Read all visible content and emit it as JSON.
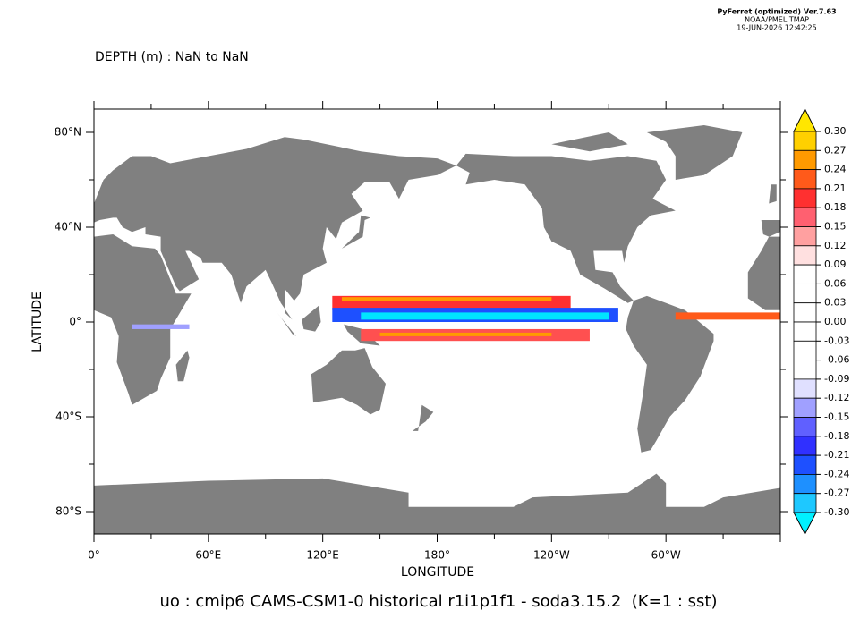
{
  "header": {
    "lines": [
      "PyFerret (optimized) Ver.7.63",
      "NOAA/PMEL TMAP",
      "19-JUN-2026 12:42:25"
    ]
  },
  "title": "DEPTH (m) : NaN to NaN",
  "map": {
    "x_label": "LONGITUDE",
    "y_label": "LATITUDE",
    "x_tick_labels": [
      "0°",
      "60°E",
      "120°E",
      "180°",
      "120°W",
      "60°W"
    ],
    "y_tick_labels": [
      "80°N",
      "40°N",
      "0°",
      "40°S",
      "80°S"
    ]
  },
  "colorbar": {
    "labels": [
      "0.30",
      "0.27",
      "0.24",
      "0.21",
      "0.18",
      "0.15",
      "0.12",
      "0.09",
      "0.06",
      "0.03",
      "0.00",
      "-0.03",
      "-0.06",
      "-0.09",
      "-0.12",
      "-0.15",
      "-0.18",
      "-0.21",
      "-0.24",
      "-0.27",
      "-0.30"
    ]
  },
  "footer": "uo : cmip6 CAMS-CSM1-0 historical r1i1p1f1 - soda3.15.2  (K=1 : sst)"
}
